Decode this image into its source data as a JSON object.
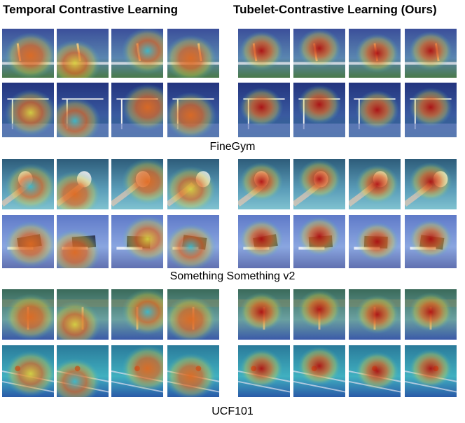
{
  "titles": {
    "left": "Temporal Contrastive Learning",
    "right": "Tubelet-Contrastive Learning (Ours)"
  },
  "datasets": [
    {
      "label": "FineGym"
    },
    {
      "label": "Something Something v2"
    },
    {
      "label": "UCF101"
    }
  ],
  "colors": {
    "heat_red": "#b01010",
    "heat_orange": "#e06a20",
    "heat_yellow": "#d8d040",
    "heat_cyan": "#40b8c8",
    "heat_blue": "#2a3a9a"
  }
}
